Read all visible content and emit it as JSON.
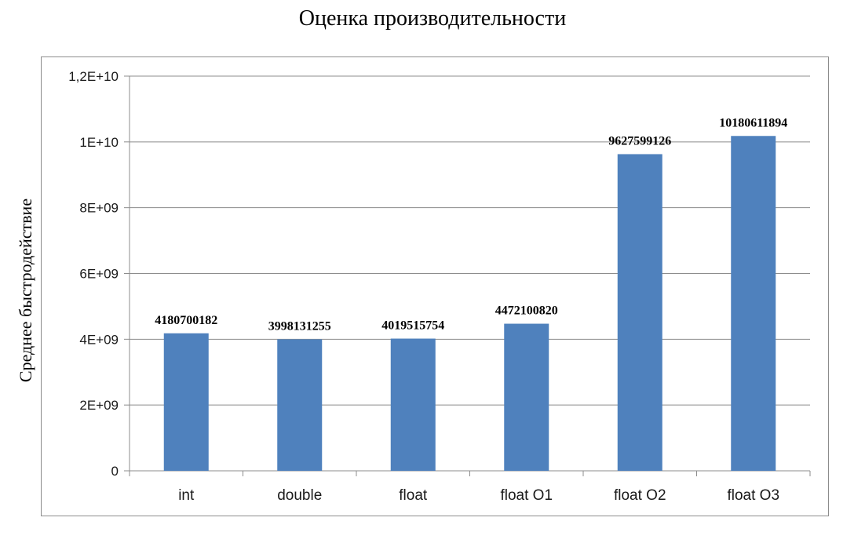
{
  "chart_data": {
    "type": "bar",
    "title": "Оценка производительности",
    "ylabel": "Среднее быстродействие",
    "xlabel": "",
    "categories": [
      "int",
      "double",
      "float",
      "float O1",
      "float O2",
      "float O3"
    ],
    "values": [
      4180700182,
      3998131255,
      4019515754,
      4472100820,
      9627599126,
      10180611894
    ],
    "data_labels": [
      "4180700182",
      "3998131255",
      "4019515754",
      "4472100820",
      "9627599126",
      "10180611894"
    ],
    "ylim": [
      0,
      12000000000
    ],
    "yticks": [
      0,
      2000000000,
      4000000000,
      6000000000,
      8000000000,
      10000000000,
      12000000000
    ],
    "ytick_labels": [
      "0",
      "2E+09",
      "4E+09",
      "6E+09",
      "8E+09",
      "1E+10",
      "1,2E+10"
    ],
    "grid": true,
    "bar_color": "#4f81bd"
  }
}
